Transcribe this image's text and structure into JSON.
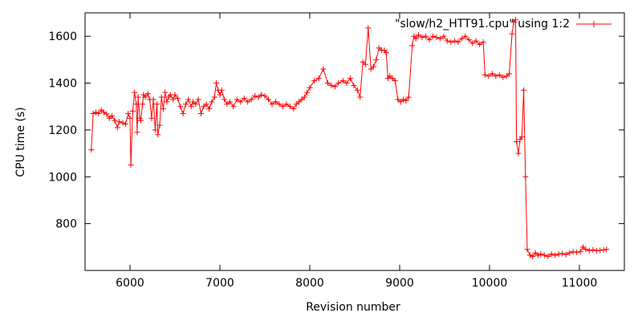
{
  "chart_data": {
    "type": "line",
    "xlabel": "Revision number",
    "ylabel": "CPU time (s)",
    "xlim": [
      5500,
      11500
    ],
    "ylim": [
      600,
      1700
    ],
    "xticks": [
      6000,
      7000,
      8000,
      9000,
      10000,
      11000
    ],
    "yticks": [
      800,
      1000,
      1200,
      1400,
      1600
    ],
    "grid": false,
    "legend_position": "top-right",
    "series": [
      {
        "name": "\"slow/h2_HTT91.cpu\" using 1:2",
        "color": "#ff0000",
        "marker": "plus",
        "points": [
          [
            5570,
            1115
          ],
          [
            5590,
            1270
          ],
          [
            5620,
            1275
          ],
          [
            5650,
            1270
          ],
          [
            5680,
            1285
          ],
          [
            5710,
            1275
          ],
          [
            5740,
            1268
          ],
          [
            5770,
            1250
          ],
          [
            5800,
            1260
          ],
          [
            5830,
            1240
          ],
          [
            5860,
            1210
          ],
          [
            5880,
            1235
          ],
          [
            5920,
            1230
          ],
          [
            5950,
            1225
          ],
          [
            5980,
            1270
          ],
          [
            6000,
            1250
          ],
          [
            6010,
            1050
          ],
          [
            6030,
            1280
          ],
          [
            6050,
            1360
          ],
          [
            6070,
            1310
          ],
          [
            6080,
            1190
          ],
          [
            6090,
            1340
          ],
          [
            6110,
            1250
          ],
          [
            6120,
            1240
          ],
          [
            6140,
            1310
          ],
          [
            6150,
            1350
          ],
          [
            6170,
            1340
          ],
          [
            6200,
            1355
          ],
          [
            6220,
            1330
          ],
          [
            6240,
            1250
          ],
          [
            6260,
            1330
          ],
          [
            6280,
            1200
          ],
          [
            6300,
            1310
          ],
          [
            6310,
            1180
          ],
          [
            6330,
            1220
          ],
          [
            6350,
            1340
          ],
          [
            6370,
            1290
          ],
          [
            6390,
            1360
          ],
          [
            6410,
            1320
          ],
          [
            6430,
            1340
          ],
          [
            6450,
            1350
          ],
          [
            6480,
            1330
          ],
          [
            6500,
            1350
          ],
          [
            6530,
            1335
          ],
          [
            6560,
            1300
          ],
          [
            6590,
            1270
          ],
          [
            6620,
            1310
          ],
          [
            6650,
            1330
          ],
          [
            6680,
            1300
          ],
          [
            6700,
            1320
          ],
          [
            6730,
            1310
          ],
          [
            6760,
            1330
          ],
          [
            6790,
            1270
          ],
          [
            6820,
            1300
          ],
          [
            6850,
            1310
          ],
          [
            6880,
            1290
          ],
          [
            6910,
            1320
          ],
          [
            6940,
            1340
          ],
          [
            6960,
            1400
          ],
          [
            6980,
            1370
          ],
          [
            7000,
            1350
          ],
          [
            7020,
            1370
          ],
          [
            7050,
            1330
          ],
          [
            7080,
            1310
          ],
          [
            7110,
            1320
          ],
          [
            7150,
            1300
          ],
          [
            7190,
            1330
          ],
          [
            7230,
            1320
          ],
          [
            7270,
            1335
          ],
          [
            7310,
            1320
          ],
          [
            7350,
            1330
          ],
          [
            7390,
            1345
          ],
          [
            7430,
            1340
          ],
          [
            7460,
            1350
          ],
          [
            7500,
            1345
          ],
          [
            7540,
            1330
          ],
          [
            7580,
            1310
          ],
          [
            7620,
            1320
          ],
          [
            7660,
            1310
          ],
          [
            7700,
            1300
          ],
          [
            7740,
            1310
          ],
          [
            7780,
            1300
          ],
          [
            7820,
            1290
          ],
          [
            7850,
            1310
          ],
          [
            7880,
            1320
          ],
          [
            7910,
            1330
          ],
          [
            7940,
            1340
          ],
          [
            7970,
            1360
          ],
          [
            8000,
            1380
          ],
          [
            8050,
            1410
          ],
          [
            8100,
            1420
          ],
          [
            8150,
            1460
          ],
          [
            8200,
            1400
          ],
          [
            8240,
            1390
          ],
          [
            8280,
            1385
          ],
          [
            8320,
            1400
          ],
          [
            8370,
            1410
          ],
          [
            8410,
            1400
          ],
          [
            8450,
            1420
          ],
          [
            8490,
            1390
          ],
          [
            8530,
            1370
          ],
          [
            8560,
            1340
          ],
          [
            8590,
            1490
          ],
          [
            8620,
            1480
          ],
          [
            8650,
            1635
          ],
          [
            8680,
            1460
          ],
          [
            8710,
            1470
          ],
          [
            8740,
            1500
          ],
          [
            8770,
            1550
          ],
          [
            8800,
            1540
          ],
          [
            8830,
            1540
          ],
          [
            8850,
            1530
          ],
          [
            8870,
            1420
          ],
          [
            8890,
            1430
          ],
          [
            8920,
            1420
          ],
          [
            8950,
            1410
          ],
          [
            8980,
            1330
          ],
          [
            9010,
            1320
          ],
          [
            9040,
            1330
          ],
          [
            9070,
            1325
          ],
          [
            9100,
            1340
          ],
          [
            9140,
            1560
          ],
          [
            9160,
            1600
          ],
          [
            9180,
            1590
          ],
          [
            9210,
            1605
          ],
          [
            9250,
            1595
          ],
          [
            9290,
            1600
          ],
          [
            9330,
            1585
          ],
          [
            9370,
            1600
          ],
          [
            9410,
            1595
          ],
          [
            9450,
            1590
          ],
          [
            9490,
            1600
          ],
          [
            9530,
            1580
          ],
          [
            9570,
            1575
          ],
          [
            9610,
            1580
          ],
          [
            9650,
            1575
          ],
          [
            9690,
            1590
          ],
          [
            9730,
            1600
          ],
          [
            9770,
            1585
          ],
          [
            9810,
            1570
          ],
          [
            9850,
            1580
          ],
          [
            9890,
            1565
          ],
          [
            9930,
            1575
          ],
          [
            9950,
            1435
          ],
          [
            9990,
            1430
          ],
          [
            10030,
            1440
          ],
          [
            10070,
            1430
          ],
          [
            10110,
            1435
          ],
          [
            10150,
            1425
          ],
          [
            10190,
            1430
          ],
          [
            10220,
            1440
          ],
          [
            10250,
            1610
          ],
          [
            10270,
            1660
          ],
          [
            10290,
            1670
          ],
          [
            10300,
            1150
          ],
          [
            10320,
            1100
          ],
          [
            10340,
            1160
          ],
          [
            10360,
            1170
          ],
          [
            10380,
            1370
          ],
          [
            10400,
            1000
          ],
          [
            10420,
            690
          ],
          [
            10450,
            665
          ],
          [
            10480,
            660
          ],
          [
            10510,
            675
          ],
          [
            10540,
            665
          ],
          [
            10570,
            670
          ],
          [
            10610,
            665
          ],
          [
            10650,
            660
          ],
          [
            10690,
            670
          ],
          [
            10730,
            665
          ],
          [
            10770,
            670
          ],
          [
            10810,
            672
          ],
          [
            10850,
            668
          ],
          [
            10890,
            675
          ],
          [
            10930,
            680
          ],
          [
            10970,
            678
          ],
          [
            11010,
            680
          ],
          [
            11040,
            700
          ],
          [
            11070,
            690
          ],
          [
            11110,
            685
          ],
          [
            11150,
            688
          ],
          [
            11190,
            684
          ],
          [
            11230,
            686
          ],
          [
            11270,
            688
          ],
          [
            11300,
            690
          ]
        ]
      }
    ]
  }
}
